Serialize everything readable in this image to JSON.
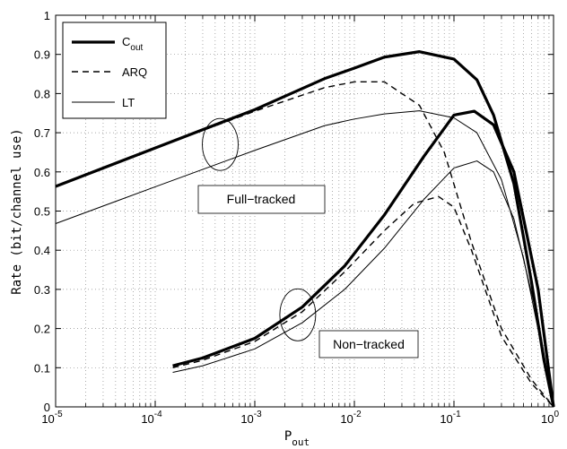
{
  "chart_data": {
    "type": "line",
    "xlabel": "P",
    "xlabel_sub": "out",
    "ylabel": "Rate (bit/channel use)",
    "xscale": "log",
    "xlim": [
      1e-05,
      1
    ],
    "ylim": [
      0,
      1
    ],
    "grid": true,
    "legend_position": "top-left",
    "x_tick_labels": [
      {
        "base": "10",
        "exp": "-5",
        "value": 1e-05
      },
      {
        "base": "10",
        "exp": "-4",
        "value": 0.0001
      },
      {
        "base": "10",
        "exp": "-3",
        "value": 0.001
      },
      {
        "base": "10",
        "exp": "-2",
        "value": 0.01
      },
      {
        "base": "10",
        "exp": "-1",
        "value": 0.1
      },
      {
        "base": "10",
        "exp": "0",
        "value": 1
      }
    ],
    "y_tick_labels": [
      "0",
      "0.1",
      "0.2",
      "0.3",
      "0.4",
      "0.5",
      "0.6",
      "0.7",
      "0.8",
      "0.9",
      "1"
    ],
    "legend": [
      {
        "label": "C",
        "sub": "out",
        "style": "thick"
      },
      {
        "label": "ARQ",
        "style": "dashed"
      },
      {
        "label": "LT",
        "style": "thin"
      }
    ],
    "annotations": [
      "Full−tracked",
      "Non−tracked"
    ],
    "series": [
      {
        "group": "Full−tracked",
        "style": "thick",
        "points": [
          [
            1e-05,
            0.563
          ],
          [
            0.0001,
            0.661
          ],
          [
            0.001,
            0.759
          ],
          [
            0.005,
            0.838
          ],
          [
            0.01,
            0.865
          ],
          [
            0.02,
            0.893
          ],
          [
            0.045,
            0.907
          ],
          [
            0.1,
            0.888
          ],
          [
            0.17,
            0.835
          ],
          [
            0.25,
            0.745
          ],
          [
            0.4,
            0.57
          ],
          [
            0.6,
            0.32
          ],
          [
            0.8,
            0.12
          ],
          [
            1,
            0.0
          ]
        ]
      },
      {
        "group": "Full−tracked",
        "style": "dashed",
        "points": [
          [
            1e-05,
            0.563
          ],
          [
            0.0001,
            0.661
          ],
          [
            0.001,
            0.755
          ],
          [
            0.005,
            0.815
          ],
          [
            0.01,
            0.83
          ],
          [
            0.02,
            0.83
          ],
          [
            0.045,
            0.77
          ],
          [
            0.08,
            0.65
          ],
          [
            0.15,
            0.42
          ],
          [
            0.3,
            0.2
          ],
          [
            0.6,
            0.07
          ],
          [
            1,
            0.0
          ]
        ]
      },
      {
        "group": "Full−tracked",
        "style": "thin",
        "points": [
          [
            1e-05,
            0.468
          ],
          [
            0.0001,
            0.562
          ],
          [
            0.001,
            0.655
          ],
          [
            0.005,
            0.718
          ],
          [
            0.01,
            0.735
          ],
          [
            0.02,
            0.748
          ],
          [
            0.045,
            0.756
          ],
          [
            0.1,
            0.738
          ],
          [
            0.17,
            0.7
          ],
          [
            0.3,
            0.58
          ],
          [
            0.5,
            0.38
          ],
          [
            0.75,
            0.16
          ],
          [
            1,
            0.0
          ]
        ]
      },
      {
        "group": "Non−tracked",
        "style": "thick",
        "points": [
          [
            0.00015,
            0.105
          ],
          [
            0.0003,
            0.125
          ],
          [
            0.001,
            0.175
          ],
          [
            0.003,
            0.255
          ],
          [
            0.008,
            0.36
          ],
          [
            0.02,
            0.49
          ],
          [
            0.05,
            0.64
          ],
          [
            0.1,
            0.745
          ],
          [
            0.16,
            0.755
          ],
          [
            0.25,
            0.72
          ],
          [
            0.4,
            0.6
          ],
          [
            0.7,
            0.3
          ],
          [
            1,
            0.0
          ]
        ]
      },
      {
        "group": "Non−tracked",
        "style": "dashed",
        "points": [
          [
            0.00015,
            0.1
          ],
          [
            0.0003,
            0.119
          ],
          [
            0.001,
            0.167
          ],
          [
            0.003,
            0.243
          ],
          [
            0.008,
            0.345
          ],
          [
            0.02,
            0.45
          ],
          [
            0.04,
            0.52
          ],
          [
            0.07,
            0.537
          ],
          [
            0.1,
            0.51
          ],
          [
            0.15,
            0.4
          ],
          [
            0.3,
            0.18
          ],
          [
            0.6,
            0.06
          ],
          [
            1,
            0.0
          ]
        ]
      },
      {
        "group": "Non−tracked",
        "style": "thin",
        "points": [
          [
            0.00015,
            0.088
          ],
          [
            0.0003,
            0.105
          ],
          [
            0.001,
            0.148
          ],
          [
            0.003,
            0.215
          ],
          [
            0.008,
            0.3
          ],
          [
            0.02,
            0.405
          ],
          [
            0.05,
            0.53
          ],
          [
            0.1,
            0.61
          ],
          [
            0.17,
            0.628
          ],
          [
            0.25,
            0.6
          ],
          [
            0.4,
            0.48
          ],
          [
            0.7,
            0.22
          ],
          [
            1,
            0.0
          ]
        ]
      }
    ]
  }
}
